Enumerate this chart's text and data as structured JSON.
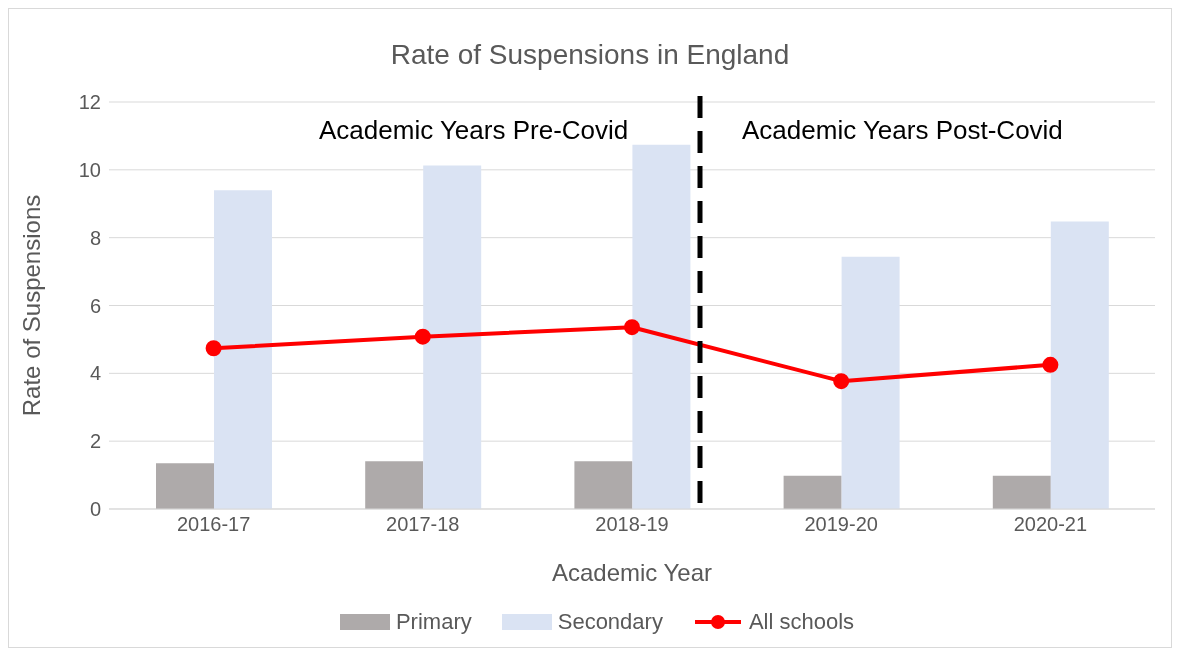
{
  "chart_data": {
    "type": "bar",
    "title": "Rate of Suspensions in England",
    "xlabel": "Academic Year",
    "ylabel": "Rate of Suspensions",
    "categories": [
      "2016-17",
      "2017-18",
      "2018-19",
      "2019-20",
      "2020-21"
    ],
    "series": [
      {
        "name": "Primary",
        "color": "#aeaaaa",
        "values": [
          1.35,
          1.41,
          1.41,
          0.98,
          0.98
        ]
      },
      {
        "name": "Secondary",
        "color": "#dae3f3",
        "values": [
          9.4,
          10.13,
          10.74,
          7.44,
          8.48
        ]
      },
      {
        "name": "All schools",
        "type": "line",
        "color": "#ff0000",
        "marker": "circle",
        "values": [
          4.74,
          5.08,
          5.36,
          3.77,
          4.25
        ]
      }
    ],
    "ylim": [
      0,
      12
    ],
    "yticks": [
      0,
      2,
      4,
      6,
      8,
      10,
      12
    ],
    "grid": "y",
    "legend": "bottom",
    "annotations": [
      "Academic Years Pre-Covid",
      "Academic Years Post-Covid"
    ]
  }
}
